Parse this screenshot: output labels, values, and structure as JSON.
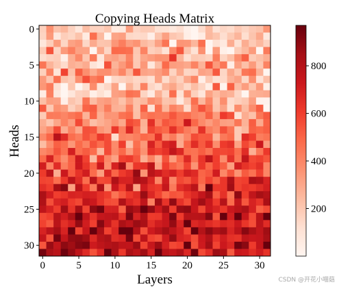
{
  "chart_data": {
    "type": "heatmap",
    "title": "Copying Heads Matrix",
    "xlabel": "Layers",
    "ylabel": "Heads",
    "x_ticks": [
      0,
      5,
      10,
      15,
      20,
      25,
      30
    ],
    "y_ticks": [
      0,
      5,
      10,
      15,
      20,
      25,
      30
    ],
    "n_layers": 32,
    "n_heads": 32,
    "colormap": "Reds",
    "colorbar": {
      "vmin": 0,
      "vmax": 970,
      "ticks": [
        200,
        400,
        600,
        800
      ]
    },
    "row_means": [
      150,
      180,
      230,
      260,
      280,
      300,
      270,
      260,
      230,
      200,
      260,
      320,
      420,
      420,
      430,
      470,
      500,
      520,
      520,
      560,
      600,
      620,
      640,
      650,
      660,
      700,
      720,
      720,
      740,
      760,
      760,
      780
    ],
    "values_encoding": "z = round(row_means[r] + noise(r,c)), noise spread ~ +/-200, clipped 0..970"
  },
  "watermark": "CSDN @开花小喵菇",
  "colors": {
    "cmap_low": "#fff5f0",
    "cmap_high": "#67000d"
  }
}
